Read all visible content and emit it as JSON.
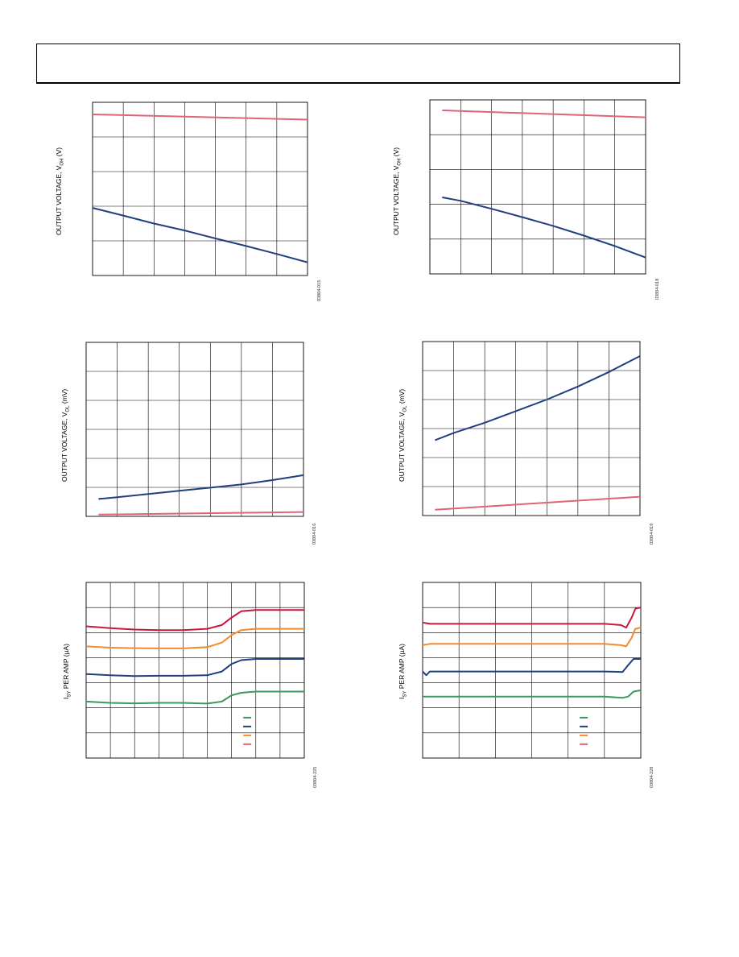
{
  "chart_data": [
    {
      "type": "line",
      "ylabel": "OUTPUT VOLTAGE, V",
      "ylabel_sub": "OH",
      "ylabel_unit": " (V)",
      "figure_id": "03804-015",
      "xlim": [
        0,
        7
      ],
      "ylim": [
        0,
        5
      ],
      "grid": true,
      "series": [
        {
          "color": "#e06479",
          "x": [
            0,
            7
          ],
          "y": [
            4.65,
            4.5
          ]
        },
        {
          "color": "#1f3f7f",
          "x": [
            0,
            1,
            2,
            3,
            4,
            5,
            6,
            7
          ],
          "y": [
            1.95,
            1.73,
            1.5,
            1.3,
            1.07,
            0.85,
            0.62,
            0.38
          ]
        }
      ]
    },
    {
      "type": "line",
      "ylabel": "OUTPUT VOLTAGE, V",
      "ylabel_sub": "OH",
      "ylabel_unit": " (V)",
      "figure_id": "03804-018",
      "xlim": [
        0,
        7
      ],
      "ylim": [
        0,
        5
      ],
      "grid": true,
      "series": [
        {
          "color": "#e06479",
          "x": [
            0.4,
            7
          ],
          "y": [
            4.7,
            4.5
          ]
        },
        {
          "color": "#1f3f7f",
          "x": [
            0.4,
            1,
            2,
            3,
            4,
            5,
            6,
            7
          ],
          "y": [
            2.2,
            2.1,
            1.87,
            1.63,
            1.38,
            1.1,
            0.8,
            0.47
          ]
        }
      ]
    },
    {
      "type": "line",
      "ylabel": "OUTPUT VOLTAGE, V",
      "ylabel_sub": "OL",
      "ylabel_unit": " (mV)",
      "figure_id": "03804-016",
      "xlim": [
        0,
        7
      ],
      "ylim": [
        0,
        6
      ],
      "grid": true,
      "series": [
        {
          "color": "#e06479",
          "x": [
            0.4,
            7
          ],
          "y": [
            0.06,
            0.15
          ]
        },
        {
          "color": "#1f3f7f",
          "x": [
            0.4,
            1,
            2,
            3,
            4,
            5,
            6,
            7
          ],
          "y": [
            0.6,
            0.66,
            0.77,
            0.88,
            0.99,
            1.1,
            1.25,
            1.42
          ]
        }
      ]
    },
    {
      "type": "line",
      "ylabel": "OUTPUT VOLTAGE, V",
      "ylabel_sub": "OL",
      "ylabel_unit": " (mV)",
      "figure_id": "03804-019",
      "xlim": [
        0,
        7
      ],
      "ylim": [
        0,
        6
      ],
      "grid": true,
      "series": [
        {
          "color": "#e06479",
          "x": [
            0.4,
            7
          ],
          "y": [
            0.2,
            0.65
          ]
        },
        {
          "color": "#1f3f7f",
          "x": [
            0.4,
            1,
            2,
            3,
            4,
            5,
            6,
            7
          ],
          "y": [
            2.6,
            2.85,
            3.2,
            3.6,
            4.0,
            4.45,
            4.95,
            5.5
          ]
        }
      ]
    },
    {
      "type": "line",
      "ylabel": "I",
      "ylabel_sub": "SY",
      "ylabel_unit": " PER AMP (µA)",
      "figure_id": "03804-225",
      "xlim": [
        0,
        9
      ],
      "ylim": [
        0,
        7
      ],
      "grid": true,
      "series": [
        {
          "color": "#c8173c",
          "x": [
            0,
            1,
            2,
            3,
            4,
            5,
            5.6,
            6,
            6.4,
            7,
            8,
            9
          ],
          "y": [
            5.25,
            5.18,
            5.12,
            5.1,
            5.1,
            5.15,
            5.3,
            5.6,
            5.85,
            5.9,
            5.9,
            5.9
          ]
        },
        {
          "color": "#f28a2e",
          "x": [
            0,
            1,
            2,
            3,
            4,
            5,
            5.6,
            6,
            6.4,
            7,
            8,
            9
          ],
          "y": [
            4.45,
            4.4,
            4.38,
            4.37,
            4.37,
            4.42,
            4.6,
            4.9,
            5.1,
            5.15,
            5.15,
            5.15
          ]
        },
        {
          "color": "#1f3f7f",
          "x": [
            0,
            1,
            2,
            3,
            4,
            5,
            5.6,
            6,
            6.4,
            7,
            8,
            9
          ],
          "y": [
            3.35,
            3.3,
            3.27,
            3.28,
            3.28,
            3.3,
            3.45,
            3.75,
            3.9,
            3.95,
            3.95,
            3.95
          ]
        },
        {
          "color": "#3a9a5c",
          "x": [
            0,
            1,
            2,
            3,
            4,
            5,
            5.6,
            6,
            6.4,
            7,
            8,
            9
          ],
          "y": [
            2.25,
            2.2,
            2.18,
            2.2,
            2.2,
            2.17,
            2.25,
            2.5,
            2.6,
            2.65,
            2.65,
            2.65
          ]
        }
      ],
      "legend_colors": [
        "#3a9a5c",
        "#1f3f7f",
        "#f28a2e",
        "#e06479"
      ]
    },
    {
      "type": "line",
      "ylabel": "I",
      "ylabel_sub": "SY",
      "ylabel_unit": " PER AMP (µA)",
      "figure_id": "03804-228",
      "xlim": [
        0,
        6
      ],
      "ylim": [
        0,
        7
      ],
      "grid": true,
      "series": [
        {
          "color": "#c8173c",
          "x": [
            0,
            0.2,
            1,
            2,
            3,
            4,
            5.0,
            5.45,
            5.6,
            5.75,
            5.85,
            6
          ],
          "y": [
            5.4,
            5.35,
            5.35,
            5.35,
            5.35,
            5.35,
            5.35,
            5.3,
            5.2,
            5.6,
            5.95,
            6.0
          ]
        },
        {
          "color": "#f28a2e",
          "x": [
            0,
            0.2,
            1,
            2,
            3,
            4,
            5.0,
            5.45,
            5.6,
            5.75,
            5.85,
            6
          ],
          "y": [
            4.5,
            4.55,
            4.55,
            4.55,
            4.55,
            4.55,
            4.55,
            4.5,
            4.45,
            4.8,
            5.15,
            5.2
          ]
        },
        {
          "color": "#1f3f7f",
          "x": [
            0,
            0.1,
            0.2,
            1,
            2,
            3,
            4,
            5.0,
            5.5,
            5.65,
            5.8,
            6
          ],
          "y": [
            3.45,
            3.3,
            3.45,
            3.45,
            3.45,
            3.45,
            3.45,
            3.45,
            3.43,
            3.7,
            3.95,
            3.95
          ]
        },
        {
          "color": "#3a9a5c",
          "x": [
            0,
            0.2,
            1,
            2,
            3,
            4,
            5.0,
            5.5,
            5.65,
            5.8,
            6
          ],
          "y": [
            2.45,
            2.45,
            2.45,
            2.45,
            2.45,
            2.45,
            2.45,
            2.4,
            2.45,
            2.65,
            2.7
          ]
        }
      ],
      "legend_colors": [
        "#3a9a5c",
        "#1f3f7f",
        "#f28a2e",
        "#e06479"
      ]
    }
  ]
}
